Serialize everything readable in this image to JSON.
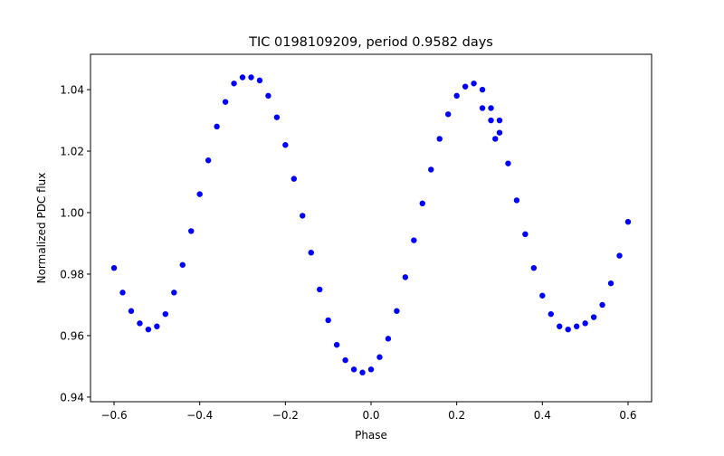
{
  "chart_data": {
    "type": "scatter",
    "title": "TIC 0198109209, period 0.9582 days",
    "xlabel": "Phase",
    "ylabel": "Normalized PDC flux",
    "xlim": [
      -0.655,
      0.655
    ],
    "ylim": [
      0.9385,
      1.0515
    ],
    "xticks": [
      -0.6,
      -0.4,
      -0.2,
      0.0,
      0.2,
      0.4,
      0.6
    ],
    "xtick_labels": [
      "−0.6",
      "−0.4",
      "−0.2",
      "0.0",
      "0.2",
      "0.4",
      "0.6"
    ],
    "yticks": [
      0.94,
      0.96,
      0.98,
      1.0,
      1.02,
      1.04
    ],
    "ytick_labels": [
      "0.94",
      "0.96",
      "0.98",
      "1.00",
      "1.02",
      "1.04"
    ],
    "grid": false,
    "marker_color": "#0000ff",
    "series": [
      {
        "x": [
          -0.6,
          -0.58,
          -0.56,
          -0.54,
          -0.52,
          -0.5,
          -0.48,
          -0.46,
          -0.44,
          -0.42,
          -0.4,
          -0.38,
          -0.36,
          -0.34,
          -0.32,
          -0.3,
          -0.28,
          -0.26,
          -0.24,
          -0.22,
          -0.2,
          -0.18,
          -0.16,
          -0.14,
          -0.12,
          -0.1,
          -0.08,
          -0.06,
          -0.04,
          -0.02,
          0.0,
          0.02,
          0.04,
          0.06,
          0.08,
          0.1,
          0.12,
          0.14,
          0.16,
          0.18,
          0.2,
          0.22,
          0.24,
          0.26,
          0.28,
          0.3,
          0.32,
          0.34,
          0.36,
          0.38,
          0.4,
          0.42,
          0.44,
          0.46,
          0.48,
          0.5,
          0.52,
          0.54,
          0.56,
          0.58,
          0.6,
          0.26,
          0.28,
          0.29,
          0.3
        ],
        "y": [
          0.982,
          0.974,
          0.968,
          0.964,
          0.962,
          0.963,
          0.967,
          0.974,
          0.983,
          0.994,
          1.006,
          1.017,
          1.028,
          1.036,
          1.042,
          1.044,
          1.044,
          1.043,
          1.038,
          1.031,
          1.022,
          1.011,
          0.999,
          0.987,
          0.975,
          0.965,
          0.957,
          0.952,
          0.949,
          0.948,
          0.949,
          0.953,
          0.959,
          0.968,
          0.979,
          0.991,
          1.003,
          1.014,
          1.024,
          1.032,
          1.038,
          1.041,
          1.042,
          1.04,
          1.034,
          1.026,
          1.016,
          1.004,
          0.993,
          0.982,
          0.973,
          0.967,
          0.963,
          0.962,
          0.963,
          0.964,
          0.966,
          0.97,
          0.977,
          0.986,
          0.997,
          1.034,
          1.03,
          1.024,
          1.03
        ]
      }
    ]
  }
}
